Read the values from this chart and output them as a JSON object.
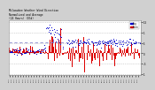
{
  "title": "Milwaukee Weather Wind Direction\nNormalized and Average\n(24 Hours) (Old)",
  "bg_color": "#d0d0d0",
  "plot_bg_color": "#ffffff",
  "grid_color": "#b0b0b0",
  "bar_color": "#dd0000",
  "dot_color": "#0000cc",
  "avg_line_color": "#8888cc",
  "avg_line_value": 0.52,
  "ylim": [
    -1.05,
    1.6
  ],
  "num_points": 288,
  "legend_labels": [
    "Avg",
    "Norm"
  ],
  "legend_colors": [
    "#0000cc",
    "#cc0000"
  ],
  "yticks": [
    -1.0,
    -0.5,
    0.0,
    0.5,
    1.0,
    1.5
  ],
  "ytick_labels": [
    "-1",
    "-.5",
    "0",
    ".5",
    "1",
    "1.5"
  ]
}
